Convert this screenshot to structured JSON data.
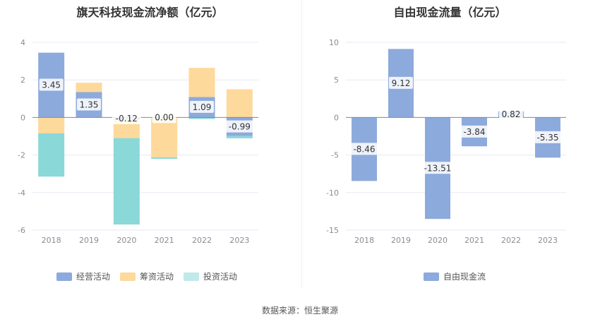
{
  "colors": {
    "operating": "#8daadc",
    "financing": "#fdd99b",
    "investing": "#8ad8d8",
    "fcf": "#8daadc",
    "grid": "#e6eaf3",
    "axis": "#888888"
  },
  "chart_data": [
    {
      "type": "bar",
      "stacked": true,
      "title": "旗天科技现金流净额（亿元）",
      "categories": [
        "2018",
        "2019",
        "2020",
        "2021",
        "2022",
        "2023"
      ],
      "ylim": [
        -6,
        4
      ],
      "yticks": [
        -6,
        -4,
        -2,
        0,
        2,
        4
      ],
      "grid": true,
      "legend_position": "bottom",
      "series": [
        {
          "name": "经营活动",
          "color_key": "operating",
          "values": [
            3.45,
            1.35,
            -0.12,
            0.0,
            1.09,
            -0.99
          ],
          "labels": [
            "3.45",
            "1.35",
            "-0.12",
            "0.00",
            "1.09",
            "-0.99"
          ]
        },
        {
          "name": "筹资活动",
          "color_key": "financing",
          "values": [
            -0.85,
            0.5,
            -0.98,
            -2.12,
            1.55,
            1.5
          ]
        },
        {
          "name": "投资活动",
          "color_key": "investing",
          "values": [
            -2.3,
            0.0,
            -4.6,
            -0.08,
            -0.08,
            -0.12
          ]
        }
      ]
    },
    {
      "type": "bar",
      "title": "自由现金流量（亿元）",
      "categories": [
        "2018",
        "2019",
        "2020",
        "2021",
        "2022",
        "2023"
      ],
      "ylim": [
        -15,
        10
      ],
      "yticks": [
        -15,
        -10,
        -5,
        0,
        5,
        10
      ],
      "grid": true,
      "legend_position": "bottom",
      "series": [
        {
          "name": "自由现金流",
          "color_key": "fcf",
          "values": [
            -8.46,
            9.12,
            -13.51,
            -3.84,
            0.82,
            -5.35
          ],
          "labels": [
            "-8.46",
            "9.12",
            "-13.51",
            "-3.84",
            "0.82",
            "-5.35"
          ]
        }
      ]
    }
  ],
  "footer": {
    "source": "数据来源：恒生聚源"
  }
}
